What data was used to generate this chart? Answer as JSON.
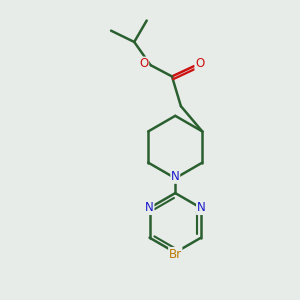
{
  "background_color": "#e8ece8",
  "bond_color": "#2a6030",
  "N_color": "#1a1acc",
  "O_color": "#cc1111",
  "Br_color": "#bb7700",
  "line_width": 1.8,
  "figsize": [
    3.0,
    3.0
  ],
  "dpi": 100,
  "xlim": [
    0,
    10
  ],
  "ylim": [
    0,
    10
  ]
}
